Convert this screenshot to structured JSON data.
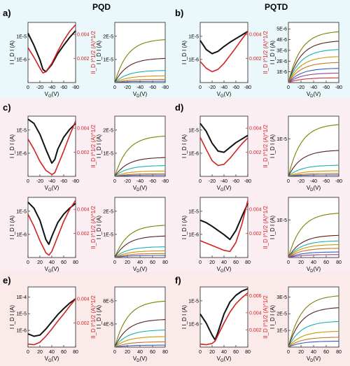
{
  "headers": {
    "left": "PQD",
    "right": "PQTD"
  },
  "labels": {
    "a": "a)",
    "b": "b)",
    "c": "c)",
    "d": "d)",
    "e": "e)",
    "f": "f)",
    "vg": "V_G(V)",
    "vd": "V_D(V)",
    "idl": "I I_D I (A)",
    "idr": "II_D I^1/2 (A)^1/2"
  },
  "colors": {
    "black": "#111111",
    "red": "#d32020",
    "output": [
      "#808000",
      "#5a2020",
      "#1ab0b0",
      "#c89a00",
      "#d07020",
      "#3a5ac0",
      "#9040a0",
      "#d03030",
      "#40a040",
      "#e060a0"
    ]
  },
  "chart_data": [
    {
      "id": "a-transfer",
      "type": "line",
      "x": "V_G (V)",
      "xticks": [
        "0",
        "-20",
        "-40",
        "-60",
        "-80"
      ],
      "xlim": [
        0,
        -80
      ],
      "yticks_left": [
        "1E-6",
        "1E-5"
      ],
      "yticks_right": [
        "0.002",
        "0.004"
      ],
      "series": [
        {
          "axis": "left",
          "color": "black",
          "x": [
            0,
            -10,
            -20,
            -25,
            -30,
            -40,
            -50,
            -60,
            -70,
            -80
          ],
          "y": [
            0.82,
            0.62,
            0.38,
            0.22,
            0.18,
            0.3,
            0.48,
            0.62,
            0.75,
            0.86
          ]
        },
        {
          "axis": "right",
          "color": "red",
          "x": [
            0,
            -10,
            -20,
            -25,
            -30,
            -40,
            -50,
            -60,
            -70,
            -80
          ],
          "y": [
            0.58,
            0.42,
            0.24,
            0.16,
            0.18,
            0.32,
            0.52,
            0.7,
            0.85,
            0.96
          ]
        }
      ]
    },
    {
      "id": "a-output",
      "type": "line",
      "x": "V_D (V)",
      "xticks": [
        "0",
        "-20",
        "-40",
        "-60",
        "-80"
      ],
      "xlim": [
        0,
        -80
      ],
      "yticks": [
        "1E-5",
        "2E-5"
      ],
      "ylim": [
        0,
        2.2e-05
      ],
      "series_sat": [
        1.6e-05,
        9e-06,
        4.5e-06,
        2.5e-06,
        1.2e-06,
        5e-07
      ]
    },
    {
      "id": "b-transfer",
      "type": "line",
      "x": "V_G (V)",
      "xticks": [
        "0",
        "-20",
        "-40",
        "-60",
        "-80"
      ],
      "xlim": [
        0,
        -80
      ],
      "yticks_left": [
        "1E-6",
        "1E-5"
      ],
      "yticks_right": [
        "0.002",
        "0.004"
      ],
      "series": [
        {
          "axis": "left",
          "color": "black",
          "x": [
            0,
            -10,
            -20,
            -30,
            -40,
            -50,
            -60,
            -70,
            -80
          ],
          "y": [
            0.7,
            0.55,
            0.48,
            0.52,
            0.6,
            0.67,
            0.73,
            0.79,
            0.85
          ]
        },
        {
          "axis": "right",
          "color": "red",
          "x": [
            0,
            -10,
            -20,
            -30,
            -40,
            -50,
            -60,
            -70,
            -80
          ],
          "y": [
            0.35,
            0.24,
            0.18,
            0.22,
            0.32,
            0.45,
            0.58,
            0.72,
            0.85
          ]
        }
      ]
    },
    {
      "id": "b-output",
      "type": "line",
      "x": "V_D (V)",
      "xticks": [
        "0",
        "-20",
        "-40",
        "-60",
        "-80"
      ],
      "xlim": [
        0,
        -80
      ],
      "yticks": [
        "1E-6",
        "2E-6",
        "3E-6",
        "4E-6",
        "5E-6"
      ],
      "ylim": [
        0,
        5e-06
      ],
      "series_sat": [
        4.3e-06,
        3.5e-06,
        2.8e-06,
        2.2e-06,
        1.7e-06,
        1.2e-06,
        8e-07,
        4e-07
      ]
    },
    {
      "id": "c1-transfer",
      "type": "line",
      "x": "V_G (V)",
      "xticks": [
        "0",
        "-20",
        "-40",
        "-60",
        "-80"
      ],
      "xlim": [
        0,
        -80
      ],
      "yticks_left": [
        "1E-6",
        "1E-5"
      ],
      "yticks_right": [
        "0.002",
        "0.004"
      ],
      "series": [
        {
          "axis": "left",
          "color": "black",
          "x": [
            0,
            -10,
            -20,
            -30,
            -40,
            -45,
            -50,
            -60,
            -70,
            -80
          ],
          "y": [
            0.95,
            0.88,
            0.7,
            0.45,
            0.22,
            0.28,
            0.45,
            0.65,
            0.78,
            0.88
          ]
        },
        {
          "axis": "right",
          "color": "red",
          "x": [
            0,
            -10,
            -20,
            -30,
            -40,
            -45,
            -50,
            -60,
            -70,
            -80
          ],
          "y": [
            0.62,
            0.45,
            0.25,
            0.1,
            0.03,
            0.06,
            0.18,
            0.42,
            0.68,
            0.92
          ]
        }
      ]
    },
    {
      "id": "c1-output",
      "type": "line",
      "x": "V_D (V)",
      "xticks": [
        "0",
        "-20",
        "-40",
        "-60",
        "-80"
      ],
      "xlim": [
        0,
        -80
      ],
      "yticks": [
        "1E-5",
        "2E-5"
      ],
      "ylim": [
        0,
        2.2e-05
      ],
      "series_sat": [
        1.5e-05,
        7e-06,
        4e-06,
        2e-06,
        1e-06,
        5e-07
      ]
    },
    {
      "id": "d1-transfer",
      "type": "line",
      "x": "V_G (V)",
      "xticks": [
        "0",
        "-20",
        "-40",
        "-60",
        "-80"
      ],
      "xlim": [
        0,
        -80
      ],
      "yticks_left": [
        "1E-6",
        "1E-5"
      ],
      "yticks_right": [
        "0.002",
        "0.004"
      ],
      "series": [
        {
          "axis": "left",
          "color": "black",
          "x": [
            0,
            -10,
            -20,
            -30,
            -40,
            -50,
            -60,
            -70,
            -80
          ],
          "y": [
            0.88,
            0.75,
            0.55,
            0.42,
            0.4,
            0.48,
            0.56,
            0.62,
            0.68
          ]
        },
        {
          "axis": "right",
          "color": "red",
          "x": [
            0,
            -10,
            -20,
            -30,
            -40,
            -50,
            -60,
            -70,
            -80
          ],
          "y": [
            0.65,
            0.45,
            0.26,
            0.18,
            0.2,
            0.3,
            0.42,
            0.54,
            0.64
          ]
        }
      ]
    },
    {
      "id": "d1-output",
      "type": "line",
      "x": "V_D (V)",
      "xticks": [
        "0",
        "-20",
        "-40",
        "-60",
        "-80"
      ],
      "xlim": [
        0,
        -80
      ],
      "yticks": [
        "1E-5"
      ],
      "ylim": [
        0,
        1.6e-05
      ],
      "series_sat": [
        1.4e-05,
        7e-06,
        3e-06,
        1.5e-06,
        8e-07,
        4e-07
      ]
    },
    {
      "id": "c2-transfer",
      "type": "line",
      "x": "V_G (V)",
      "xticks": [
        "0",
        "20",
        "40",
        "60",
        "80"
      ],
      "xlim": [
        0,
        80
      ],
      "yticks_left": [
        "1E-6",
        "1E-5"
      ],
      "yticks_right": [
        "0.002",
        "0.004"
      ],
      "series": [
        {
          "axis": "left",
          "color": "black",
          "x": [
            0,
            10,
            20,
            30,
            35,
            40,
            50,
            60,
            70,
            80
          ],
          "y": [
            0.92,
            0.82,
            0.62,
            0.3,
            0.22,
            0.35,
            0.58,
            0.72,
            0.82,
            0.9
          ]
        },
        {
          "axis": "right",
          "color": "red",
          "x": [
            0,
            10,
            20,
            30,
            35,
            40,
            50,
            60,
            70,
            80
          ],
          "y": [
            0.72,
            0.52,
            0.28,
            0.08,
            0.04,
            0.1,
            0.35,
            0.6,
            0.8,
            0.95
          ]
        }
      ]
    },
    {
      "id": "c2-output",
      "type": "line",
      "x": "V_D (V)",
      "xticks": [
        "0",
        "20",
        "40",
        "60",
        "80"
      ],
      "xlim": [
        0,
        80
      ],
      "yticks": [
        "1E-5",
        "2E-5"
      ],
      "ylim": [
        0,
        2.2e-05
      ],
      "series_sat": [
        1.2e-05,
        8e-06,
        4e-06,
        2.5e-06,
        1.5e-06,
        8e-07
      ]
    },
    {
      "id": "d2-transfer",
      "type": "line",
      "x": "V_G (V)",
      "xticks": [
        "0",
        "20",
        "40",
        "60",
        "80"
      ],
      "xlim": [
        0,
        80
      ],
      "yticks_left": [
        "1E-6",
        "1E-5"
      ],
      "yticks_right": [
        "0.002",
        "0.004"
      ],
      "series": [
        {
          "axis": "left",
          "color": "black",
          "x": [
            0,
            10,
            20,
            30,
            40,
            50,
            60,
            70,
            80
          ],
          "y": [
            0.62,
            0.58,
            0.52,
            0.45,
            0.38,
            0.3,
            0.45,
            0.68,
            0.9
          ]
        },
        {
          "axis": "right",
          "color": "red",
          "x": [
            0,
            10,
            20,
            30,
            40,
            50,
            60,
            70,
            80
          ],
          "y": [
            0.28,
            0.24,
            0.2,
            0.16,
            0.12,
            0.1,
            0.25,
            0.55,
            0.95
          ]
        }
      ]
    },
    {
      "id": "d2-output",
      "type": "line",
      "x": "V_D (V)",
      "xticks": [
        "0",
        "20",
        "40",
        "60",
        "80"
      ],
      "xlim": [
        0,
        80
      ],
      "yticks": [
        "1E-5"
      ],
      "ylim": [
        0,
        1.6e-05
      ],
      "series_sat": [
        1.2e-05,
        6e-06,
        4.5e-06,
        3.5e-06,
        2.5e-06,
        1.5e-06,
        8e-07
      ]
    },
    {
      "id": "e-transfer",
      "type": "line",
      "x": "V_G (V)",
      "xticks": [
        "0",
        "20",
        "40",
        "60",
        "80"
      ],
      "xlim": [
        0,
        80
      ],
      "yticks_left": [
        "1E-6",
        "1E-5",
        "1E-4"
      ],
      "yticks_right": [
        "0.002",
        "0.004"
      ],
      "series": [
        {
          "axis": "left",
          "color": "black",
          "x": [
            0,
            10,
            20,
            30,
            40,
            50,
            60,
            70,
            80
          ],
          "y": [
            0.22,
            0.18,
            0.2,
            0.3,
            0.42,
            0.54,
            0.64,
            0.73,
            0.8
          ]
        },
        {
          "axis": "right",
          "color": "red",
          "x": [
            0,
            10,
            20,
            30,
            40,
            50,
            60,
            70,
            80
          ],
          "y": [
            0.05,
            0.04,
            0.08,
            0.18,
            0.3,
            0.43,
            0.55,
            0.68,
            0.8
          ]
        }
      ]
    },
    {
      "id": "e-output",
      "type": "line",
      "x": "V_D (V)",
      "xticks": [
        "0",
        "20",
        "40",
        "60",
        "80"
      ],
      "xlim": [
        0,
        80
      ],
      "yticks": [
        "4E-5",
        "8E-5"
      ],
      "ylim": [
        0,
        9e-05
      ],
      "series_sat": [
        7e-05,
        4.2e-05,
        2.6e-05,
        1.6e-05,
        8e-06,
        3e-06
      ]
    },
    {
      "id": "f-transfer",
      "type": "line",
      "x": "V_G (V)",
      "xticks": [
        "0",
        "20",
        "40",
        "60",
        "80"
      ],
      "xlim": [
        0,
        80
      ],
      "yticks_left": [
        "1E-6",
        "1E-5"
      ],
      "yticks_right": [
        "0.002",
        "0.004",
        "0.006"
      ],
      "series": [
        {
          "axis": "left",
          "color": "black",
          "x": [
            0,
            10,
            20,
            25,
            30,
            40,
            50,
            60,
            70,
            80
          ],
          "y": [
            0.55,
            0.4,
            0.2,
            0.12,
            0.25,
            0.55,
            0.75,
            0.86,
            0.93,
            0.97
          ]
        },
        {
          "axis": "right",
          "color": "red",
          "x": [
            0,
            10,
            20,
            25,
            30,
            40,
            50,
            60,
            70,
            80
          ],
          "y": [
            0.05,
            0.04,
            0.06,
            0.1,
            0.2,
            0.4,
            0.58,
            0.72,
            0.82,
            0.9
          ]
        }
      ]
    },
    {
      "id": "f-output",
      "type": "line",
      "x": "V_D (V)",
      "xticks": [
        "0",
        "20",
        "40",
        "60",
        "80"
      ],
      "xlim": [
        0,
        80
      ],
      "yticks": [
        "1E-5",
        "2E-5",
        "3E-5"
      ],
      "ylim": [
        0,
        3e-05
      ],
      "series_sat": [
        2.6e-05,
        2e-05,
        1.3e-05,
        8e-06,
        5e-06,
        3e-06
      ]
    }
  ]
}
